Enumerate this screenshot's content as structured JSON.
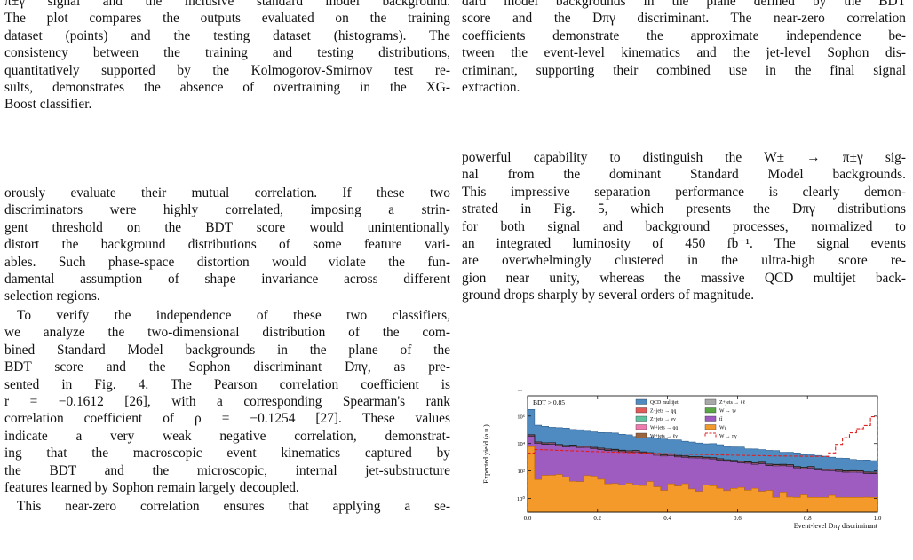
{
  "left_top_paragraph": [
    "π±γ signal and the inclusive standard model background.",
    "The plot compares the outputs evaluated on the training",
    "dataset (points) and the testing dataset (histograms). The",
    "consistency between the training and testing distributions,",
    "quantitatively supported by the Kolmogorov-Smirnov test re-",
    "sults, demonstrates the absence of overtraining in the XG-",
    "Boost classifier."
  ],
  "left_main_paragraph_1": [
    "orously evaluate their mutual correlation. If these two",
    "discriminators were highly correlated, imposing a strin-",
    "gent threshold on the BDT score would unintentionally",
    "distort the background distributions of some feature vari-",
    "ables. Such phase-space distortion would violate the fun-",
    "damental assumption of shape invariance across different",
    "selection regions."
  ],
  "left_main_paragraph_2": [
    "To verify the independence of these two classifiers,",
    "we analyze the two-dimensional distribution of the com-",
    "bined Standard Model backgrounds in the plane of the",
    "BDT score and the Sophon discriminant Dπγ, as pre-",
    "sented in Fig. 4. The Pearson correlation coefficient is",
    "r = −0.1612 [26], with a corresponding Spearman's rank",
    "correlation coefficient of ρ = −0.1254 [27]. These values",
    "indicate a very weak negative correlation, demonstrat-",
    "ing that the macroscopic event kinematics captured by",
    "the BDT and the microscopic, internal jet-substructure",
    "features learned by Sophon remain largely decoupled."
  ],
  "left_main_paragraph_3": [
    "This near-zero correlation ensures that applying a se-"
  ],
  "right_top_paragraph": [
    "dard model backgrounds in the plane defined by the BDT",
    "score and the Dπγ discriminant. The near-zero correlation",
    "coefficients demonstrate the approximate independence be-",
    "tween the event-level kinematics and the jet-level Sophon dis-",
    "criminant, supporting their combined use in the final signal",
    "extraction."
  ],
  "right_main_paragraph": [
    "powerful capability to distinguish the W± → π±γ sig-",
    "nal from the dominant Standard Model backgrounds.",
    "This impressive separation performance is clearly demon-",
    "strated in Fig. 5, which presents the Dπγ distributions",
    "for both signal and background processes, normalized to",
    "an integrated luminosity of 450 fb⁻¹. The signal events",
    "are overwhelmingly clustered in the ultra-high score re-",
    "gion near unity, whereas the massive QCD multijet back-",
    "ground drops sharply by several orders of magnitude."
  ],
  "chart_data": {
    "type": "area",
    "annotation": "BDT > 0.85",
    "xlabel": "Event-level D_πγ discriminant",
    "ylabel": "Expected yield (a.u.)",
    "xlim": [
      0.0,
      1.0
    ],
    "ylim": [
      0.1,
      30000000
    ],
    "yscale": "log",
    "xticks": [
      "0.0",
      "0.2",
      "0.4",
      "0.6",
      "0.8",
      "1.0"
    ],
    "yticks": [
      "10⁰",
      "10²",
      "10⁴",
      "10⁶",
      "10⁸"
    ],
    "legend_placement": "top-center",
    "series": [
      {
        "name": "QCD multijet",
        "color": "#4f8ac0"
      },
      {
        "name": "Z+jets → qq",
        "color": "#e05a5a"
      },
      {
        "name": "Z+jets → νν",
        "color": "#5ec4a0"
      },
      {
        "name": "W+jets → qq",
        "color": "#f07ab0"
      },
      {
        "name": "W+jets → ℓν",
        "color": "#9a6440"
      },
      {
        "name": "Z+jets → ℓℓ",
        "color": "#a8a8a8"
      },
      {
        "name": "W → τν",
        "color": "#5aa845"
      },
      {
        "name": "tt̄",
        "color": "#9e5bc0"
      },
      {
        "name": "Wγ",
        "color": "#f39a2b"
      },
      {
        "name": "W → πγ",
        "color": "#e02020"
      }
    ]
  }
}
